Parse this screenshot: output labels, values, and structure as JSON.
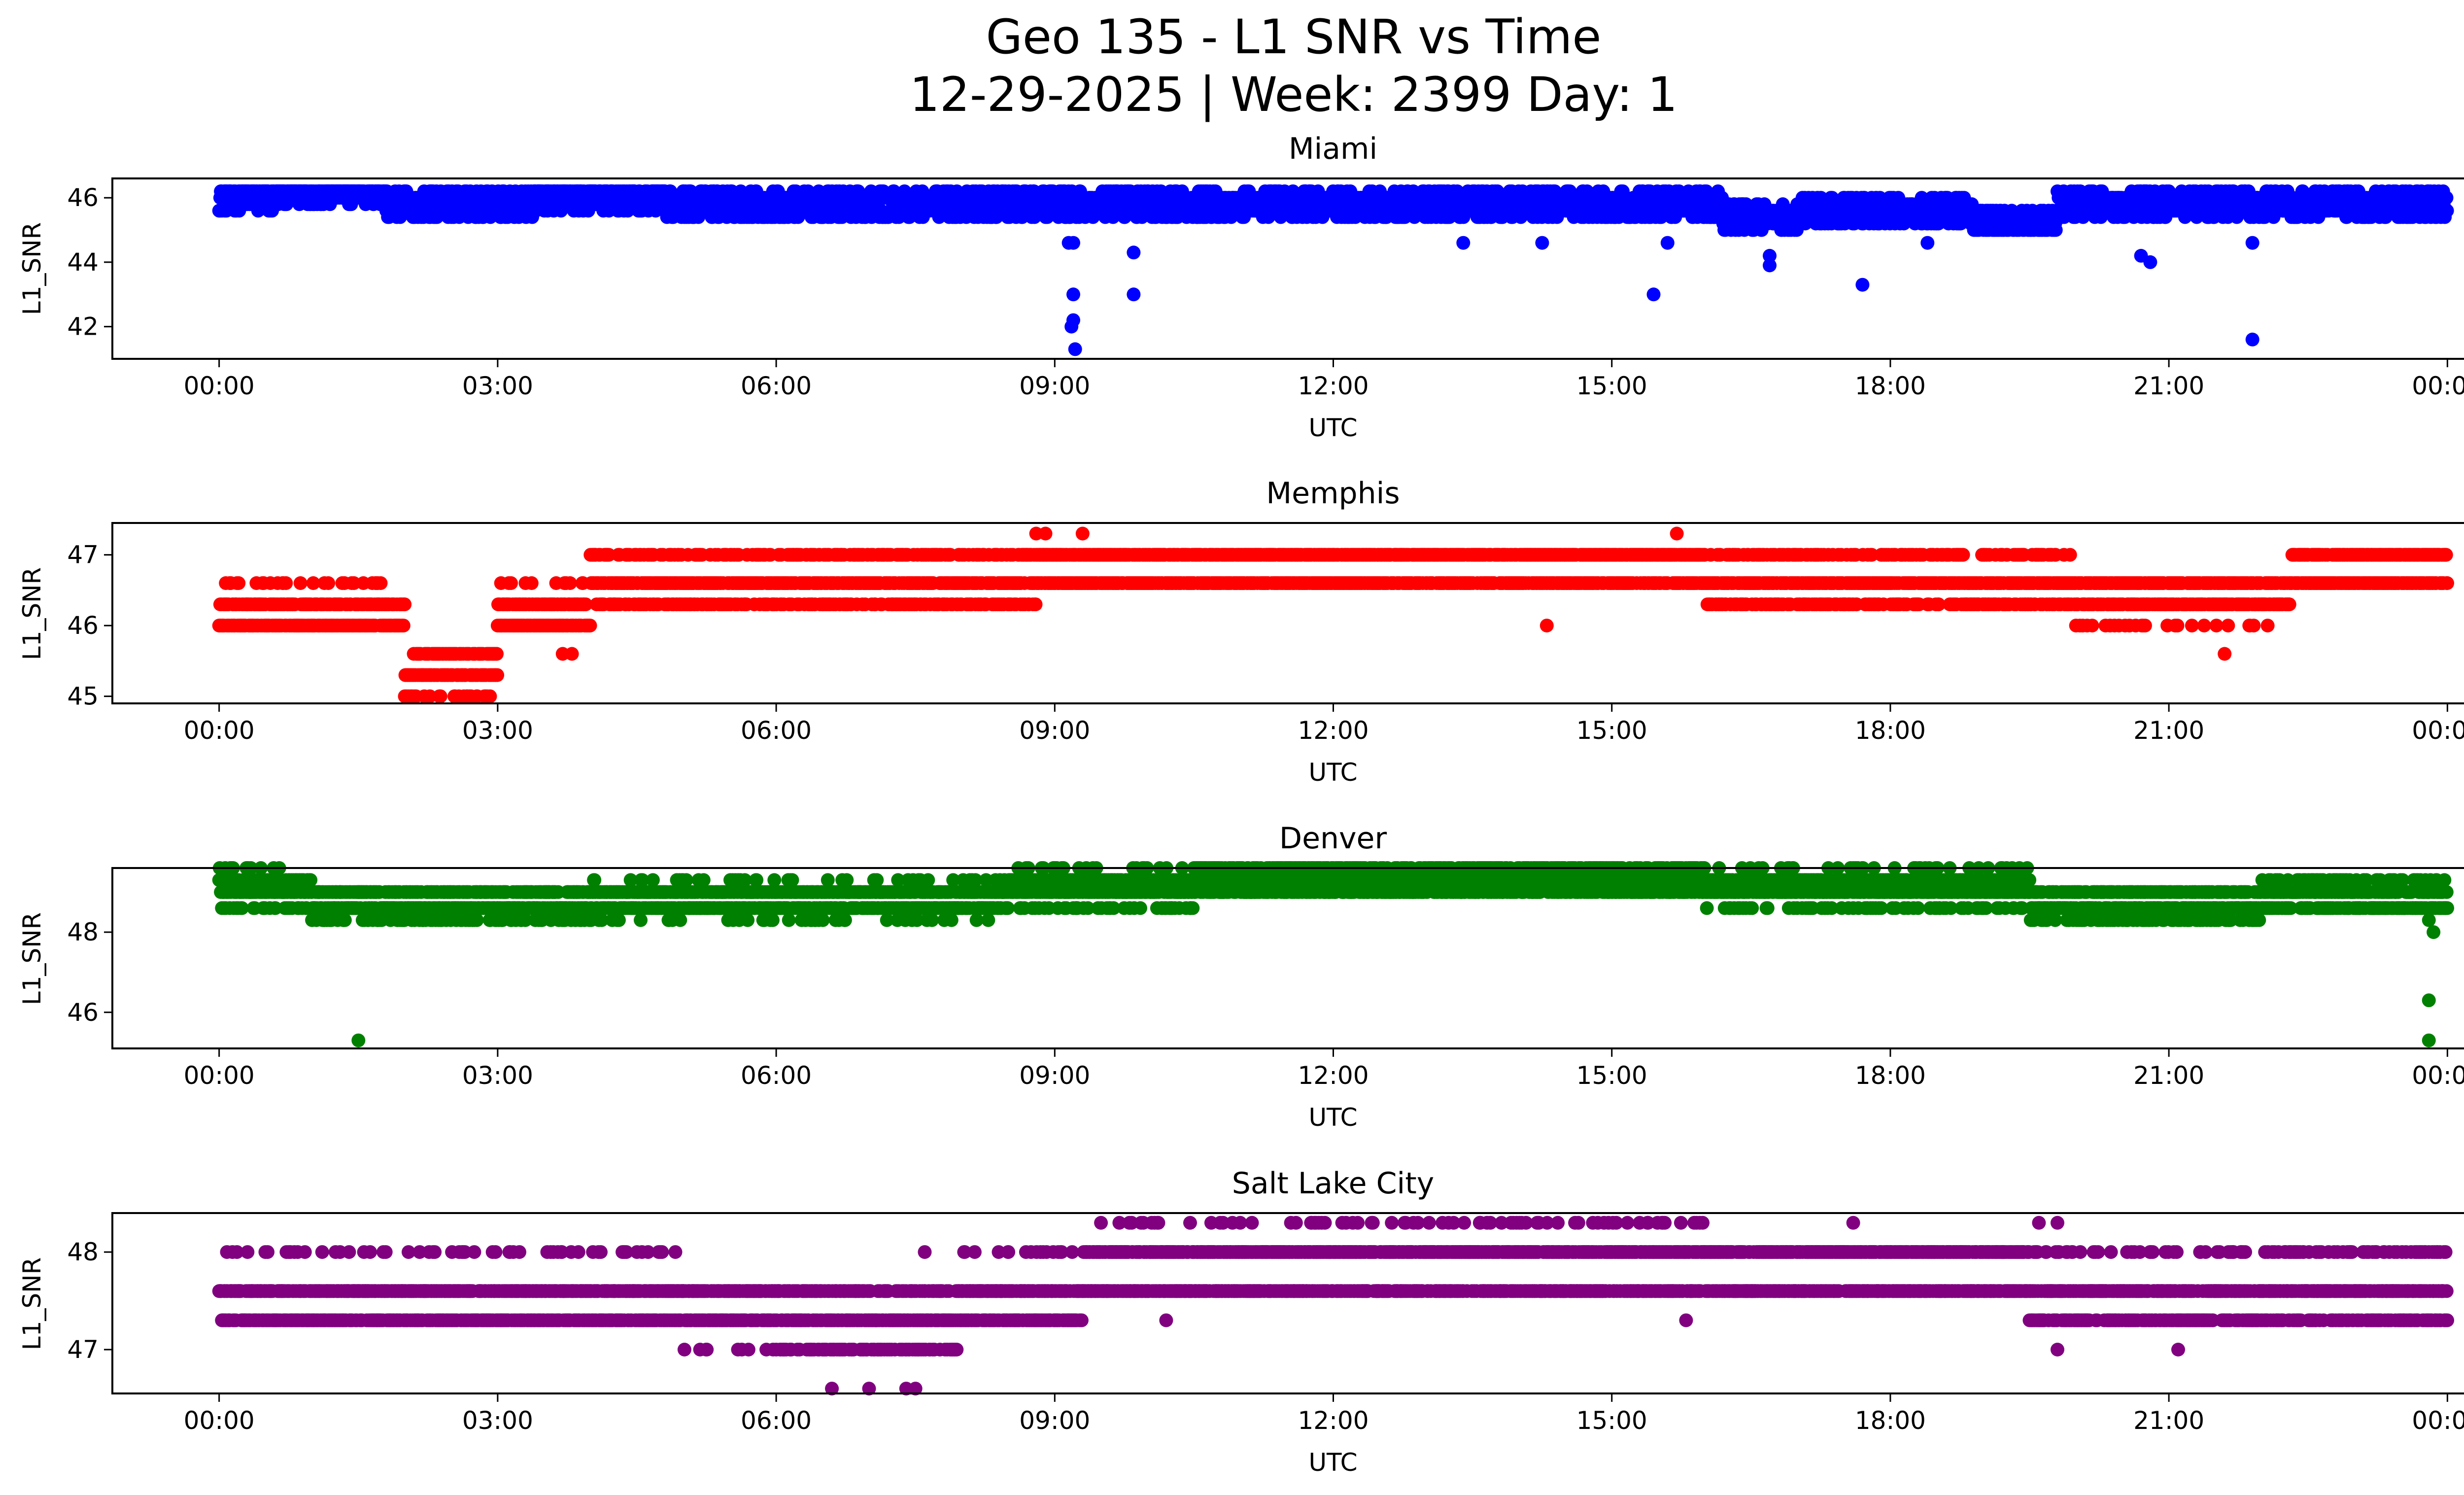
{
  "figure": {
    "title_line1": "Geo 135 - L1 SNR vs Time",
    "title_line2": "12-29-2025 | Week: 2399 Day: 1"
  },
  "chart_data": [
    {
      "type": "scatter",
      "title": "Miami",
      "xlabel": "UTC",
      "ylabel": "L1_SNR",
      "color": "#0000ff",
      "xlim_hours": [
        -1.15,
        25.15
      ],
      "ylim": [
        41.0,
        46.6
      ],
      "yticks": [
        42,
        44,
        46
      ],
      "xticks": [
        "00:00",
        "03:00",
        "06:00",
        "09:00",
        "12:00",
        "15:00",
        "18:00",
        "21:00",
        "00:00"
      ],
      "levels": [
        46.2,
        46.0,
        45.8,
        45.6,
        45.4,
        45.2,
        45.0
      ],
      "baseline": [
        [
          0.0,
          0.6,
          46.0
        ],
        [
          0.6,
          1.8,
          46.2
        ],
        [
          1.8,
          3.4,
          45.8
        ],
        [
          3.4,
          4.8,
          46.0
        ],
        [
          4.8,
          5.0,
          45.8
        ],
        [
          5.0,
          8.5,
          45.8
        ],
        [
          8.5,
          13.0,
          45.8
        ],
        [
          13.0,
          16.2,
          45.8
        ],
        [
          16.2,
          17.0,
          45.4
        ],
        [
          17.0,
          18.9,
          45.6
        ],
        [
          18.9,
          19.8,
          45.2
        ],
        [
          19.8,
          21.0,
          45.8
        ],
        [
          21.0,
          22.4,
          45.8
        ],
        [
          22.4,
          24.0,
          45.8
        ]
      ],
      "spread": 0.4,
      "outliers": [
        [
          9.15,
          46.2
        ],
        [
          9.15,
          44.6
        ],
        [
          9.2,
          44.6
        ],
        [
          9.2,
          43.0
        ],
        [
          9.2,
          42.2
        ],
        [
          9.18,
          42.0
        ],
        [
          9.22,
          41.3
        ],
        [
          9.85,
          44.3
        ],
        [
          9.85,
          43.0
        ],
        [
          15.45,
          43.0
        ],
        [
          16.7,
          44.2
        ],
        [
          16.7,
          43.9
        ],
        [
          17.7,
          43.3
        ],
        [
          20.7,
          44.2
        ],
        [
          20.8,
          44.0
        ],
        [
          21.9,
          44.6
        ],
        [
          21.9,
          41.6
        ],
        [
          14.25,
          44.6
        ],
        [
          13.4,
          44.6
        ],
        [
          15.6,
          44.6
        ],
        [
          18.4,
          44.6
        ]
      ]
    },
    {
      "type": "scatter",
      "title": "Memphis",
      "xlabel": "UTC",
      "ylabel": "L1_SNR",
      "color": "#ff0000",
      "xlim_hours": [
        -1.15,
        25.15
      ],
      "ylim": [
        44.9,
        47.45
      ],
      "yticks": [
        45,
        46,
        47
      ],
      "xticks": [
        "00:00",
        "03:00",
        "06:00",
        "09:00",
        "12:00",
        "15:00",
        "18:00",
        "21:00",
        "00:00"
      ],
      "levels": [
        47.0,
        46.6,
        46.3,
        46.0,
        45.6,
        45.3,
        45.0
      ],
      "baseline": [
        [
          0.0,
          2.0,
          46.15
        ],
        [
          2.0,
          3.0,
          45.4
        ],
        [
          3.0,
          4.0,
          46.15
        ],
        [
          4.0,
          8.8,
          46.6
        ],
        [
          8.8,
          16.0,
          46.8
        ],
        [
          16.0,
          20.0,
          46.6
        ],
        [
          20.0,
          22.3,
          46.45
        ],
        [
          22.3,
          24.0,
          46.8
        ]
      ],
      "spread": 0.35,
      "outliers": [
        [
          8.8,
          47.3
        ],
        [
          8.9,
          47.3
        ],
        [
          9.3,
          47.3
        ],
        [
          15.7,
          47.3
        ],
        [
          14.3,
          46.0
        ],
        [
          21.6,
          45.6
        ],
        [
          3.7,
          45.6
        ],
        [
          3.8,
          45.6
        ]
      ]
    },
    {
      "type": "scatter",
      "title": "Denver",
      "xlabel": "UTC",
      "ylabel": "L1_SNR",
      "color": "#008000",
      "xlim_hours": [
        -1.15,
        25.15
      ],
      "ylim": [
        45.1,
        49.6
      ],
      "yticks": [
        46,
        48
      ],
      "xticks": [
        "00:00",
        "03:00",
        "06:00",
        "09:00",
        "12:00",
        "15:00",
        "18:00",
        "21:00",
        "00:00"
      ],
      "levels": [
        49.6,
        49.3,
        49.0,
        48.6,
        48.3
      ],
      "baseline": [
        [
          0.0,
          1.0,
          49.1
        ],
        [
          1.0,
          4.0,
          48.7
        ],
        [
          4.0,
          8.5,
          48.8
        ],
        [
          8.5,
          10.5,
          49.1
        ],
        [
          10.5,
          16.0,
          49.3
        ],
        [
          16.0,
          19.5,
          49.1
        ],
        [
          19.5,
          22.0,
          48.7
        ],
        [
          22.0,
          24.0,
          48.9
        ]
      ],
      "spread": 0.4,
      "outliers": [
        [
          1.5,
          45.3
        ],
        [
          23.8,
          48.3
        ],
        [
          23.85,
          48.0
        ],
        [
          23.8,
          46.3
        ],
        [
          23.8,
          45.3
        ],
        [
          0.6,
          48.6
        ],
        [
          9.2,
          48.6
        ],
        [
          17.6,
          48.6
        ]
      ]
    },
    {
      "type": "scatter",
      "title": "Salt Lake City",
      "xlabel": "UTC",
      "ylabel": "L1_SNR",
      "color": "#800080",
      "xlim_hours": [
        -1.15,
        25.15
      ],
      "ylim": [
        46.55,
        48.4
      ],
      "yticks": [
        47,
        48
      ],
      "xticks": [
        "00:00",
        "03:00",
        "06:00",
        "09:00",
        "12:00",
        "15:00",
        "18:00",
        "21:00",
        "00:00"
      ],
      "levels": [
        48.3,
        48.0,
        47.6,
        47.3,
        47.0
      ],
      "baseline": [
        [
          0.0,
          5.0,
          47.5
        ],
        [
          5.0,
          6.0,
          47.45
        ],
        [
          6.0,
          8.0,
          47.3
        ],
        [
          8.0,
          9.3,
          47.5
        ],
        [
          9.3,
          16.0,
          47.85
        ],
        [
          16.0,
          19.5,
          47.8
        ],
        [
          19.5,
          22.0,
          47.5
        ],
        [
          22.0,
          24.0,
          47.6
        ]
      ],
      "spread": 0.35,
      "outliers": [
        [
          6.6,
          46.6
        ],
        [
          7.0,
          46.6
        ],
        [
          7.4,
          46.6
        ],
        [
          7.5,
          46.6
        ],
        [
          10.2,
          47.3
        ],
        [
          9.0,
          47.3
        ],
        [
          15.8,
          47.3
        ],
        [
          19.8,
          47.0
        ],
        [
          21.1,
          47.0
        ],
        [
          17.6,
          48.3
        ],
        [
          19.6,
          48.3
        ],
        [
          19.8,
          48.3
        ],
        [
          1.4,
          48.0
        ],
        [
          7.6,
          48.0
        ],
        [
          8.5,
          48.0
        ]
      ]
    }
  ]
}
